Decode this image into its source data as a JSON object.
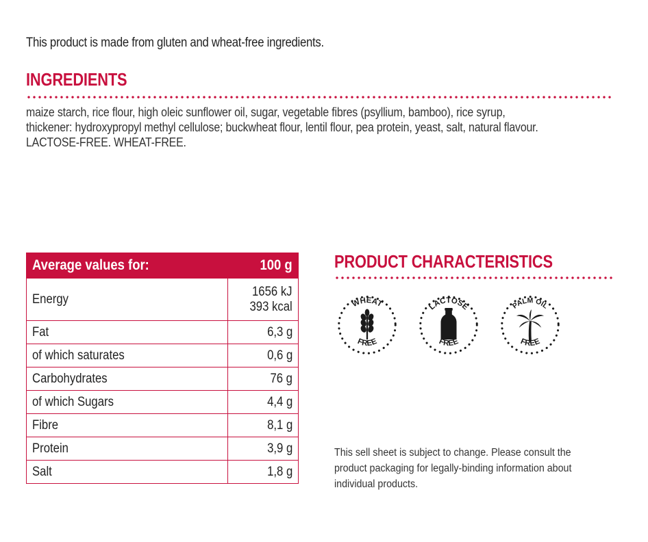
{
  "intro": "This product is made from gluten and wheat-free ingredients.",
  "ingredients": {
    "title": "INGREDIENTS",
    "lines": [
      "maize starch, rice flour, high oleic sunflower oil, sugar, vegetable fibres (psyllium, bamboo), rice syrup,",
      "thickener: hydroxypropyl methyl cellulose; buckwheat flour, lentil flour, pea protein, yeast, salt, natural flavour.",
      "LACTOSE-FREE. WHEAT-FREE."
    ]
  },
  "nutrition": {
    "header_label": "Average values for:",
    "header_value": "100 g",
    "energy_label": "Energy",
    "energy_kj": "1656 kJ",
    "energy_kcal": "393 kcal",
    "rows": [
      {
        "label": "Fat",
        "value": "6,3 g"
      },
      {
        "label": "of which saturates",
        "value": "0,6 g"
      },
      {
        "label": "Carbohydrates",
        "value": "76 g"
      },
      {
        "label": "of which Sugars",
        "value": "4,4 g"
      },
      {
        "label": "Fibre",
        "value": "8,1 g"
      },
      {
        "label": "Protein",
        "value": "3,9 g"
      },
      {
        "label": "Salt",
        "value": "1,8 g"
      }
    ]
  },
  "characteristics": {
    "title": "PRODUCT CHARACTERISTICS",
    "badges": [
      {
        "top": "WHEAT",
        "bottom": "FREE",
        "icon": "wheat-icon"
      },
      {
        "top": "LACTOSE",
        "bottom": "FREE",
        "icon": "milk-bottle-icon"
      },
      {
        "top": "PALM OIL",
        "bottom": "FREE",
        "icon": "palm-tree-icon"
      }
    ]
  },
  "disclaimer": "This sell sheet is subject to change. Please consult the product packaging for legally-binding information about individual products.",
  "colors": {
    "accent": "#c8103e",
    "icon": "#1a1a1a"
  }
}
